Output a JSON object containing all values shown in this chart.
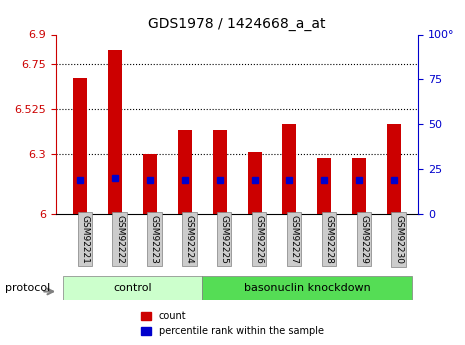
{
  "title": "GDS1978 / 1424668_a_at",
  "samples": [
    "GSM92221",
    "GSM92222",
    "GSM92223",
    "GSM92224",
    "GSM92225",
    "GSM92226",
    "GSM92227",
    "GSM92228",
    "GSM92229",
    "GSM92230"
  ],
  "bar_values": [
    6.68,
    6.82,
    6.3,
    6.42,
    6.42,
    6.31,
    6.45,
    6.28,
    6.28,
    6.45
  ],
  "percentile_values": [
    6.17,
    6.18,
    6.17,
    6.17,
    6.17,
    6.17,
    6.17,
    6.17,
    6.17,
    6.17
  ],
  "ymin": 6.0,
  "ymax": 6.9,
  "y_ticks": [
    6.0,
    6.3,
    6.525,
    6.75,
    6.9
  ],
  "y_tick_labels": [
    "6",
    "6.3",
    "6.525",
    "6.75",
    "6.9"
  ],
  "y2_ticks": [
    0,
    25,
    50,
    75,
    100
  ],
  "y2_tick_labels": [
    "0",
    "25",
    "50",
    "75",
    "100°"
  ],
  "bar_color": "#cc0000",
  "percentile_color": "#0000cc",
  "grid_color": "#000000",
  "bg_color": "#ffffff",
  "tick_bg": "#dddddd",
  "control_group": [
    "GSM92221",
    "GSM92222",
    "GSM92223",
    "GSM92224"
  ],
  "knockdown_group": [
    "GSM92225",
    "GSM92226",
    "GSM92227",
    "GSM92228",
    "GSM92229",
    "GSM92230"
  ],
  "control_label": "control",
  "knockdown_label": "basonuclin knockdown",
  "protocol_label": "protocol",
  "legend_count": "count",
  "legend_percentile": "percentile rank within the sample",
  "control_color": "#ccffcc",
  "knockdown_color": "#55dd55",
  "bar_width": 0.4
}
